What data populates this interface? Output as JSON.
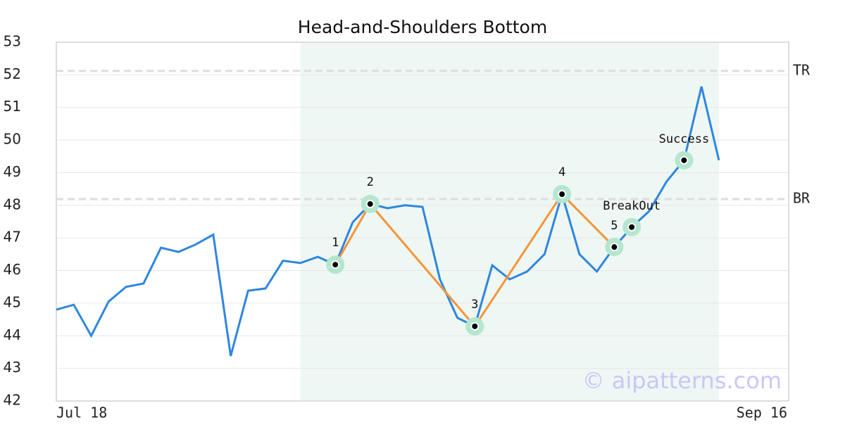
{
  "chart_data": {
    "type": "line",
    "title": "Head-and-Shoulders Bottom",
    "categories": [
      "Jul 18",
      null,
      null,
      null,
      null,
      null,
      null,
      null,
      null,
      null,
      null,
      null,
      null,
      null,
      null,
      null,
      null,
      null,
      null,
      null,
      null,
      null,
      null,
      null,
      null,
      null,
      null,
      null,
      null,
      null,
      null,
      null,
      null,
      null,
      null,
      null,
      null,
      null,
      null,
      null,
      null,
      null,
      "Sep 16"
    ],
    "values": [
      44.8,
      44.95,
      44.0,
      45.05,
      45.5,
      45.6,
      46.7,
      46.57,
      46.8,
      47.1,
      43.38,
      45.38,
      45.45,
      46.3,
      46.23,
      46.42,
      46.18,
      47.48,
      48.04,
      47.91,
      48.0,
      47.95,
      45.73,
      44.55,
      44.29,
      46.16,
      45.73,
      45.97,
      46.5,
      48.34,
      46.5,
      45.97,
      46.72,
      47.33,
      47.82,
      48.73,
      49.38,
      51.64,
      49.38,
      null,
      null,
      null,
      null
    ],
    "color": "#2e86de",
    "ylim": [
      42,
      53
    ],
    "yticks": [
      42,
      43,
      44,
      45,
      46,
      47,
      48,
      49,
      50,
      51,
      52,
      53
    ],
    "grid": true,
    "highlight": {
      "from": 14,
      "to": 38,
      "color": "#eef7f3"
    },
    "levels": [
      {
        "label": "TR",
        "value": 52.12
      },
      {
        "label": "BR",
        "value": 48.19
      }
    ],
    "pattern": {
      "color": "#f5953a",
      "points": [
        {
          "x": 16,
          "value": 46.18,
          "label": "1"
        },
        {
          "x": 18,
          "value": 48.04,
          "label": "2"
        },
        {
          "x": 24,
          "value": 44.29,
          "label": "3"
        },
        {
          "x": 29,
          "value": 48.34,
          "label": "4"
        },
        {
          "x": 32,
          "value": 46.72,
          "label": "5"
        }
      ]
    },
    "signals": [
      {
        "x": 33,
        "value": 47.33,
        "label": "BreakOut"
      },
      {
        "x": 36,
        "value": 49.38,
        "label": "Success"
      }
    ],
    "watermark": "© aipatterns.com"
  }
}
